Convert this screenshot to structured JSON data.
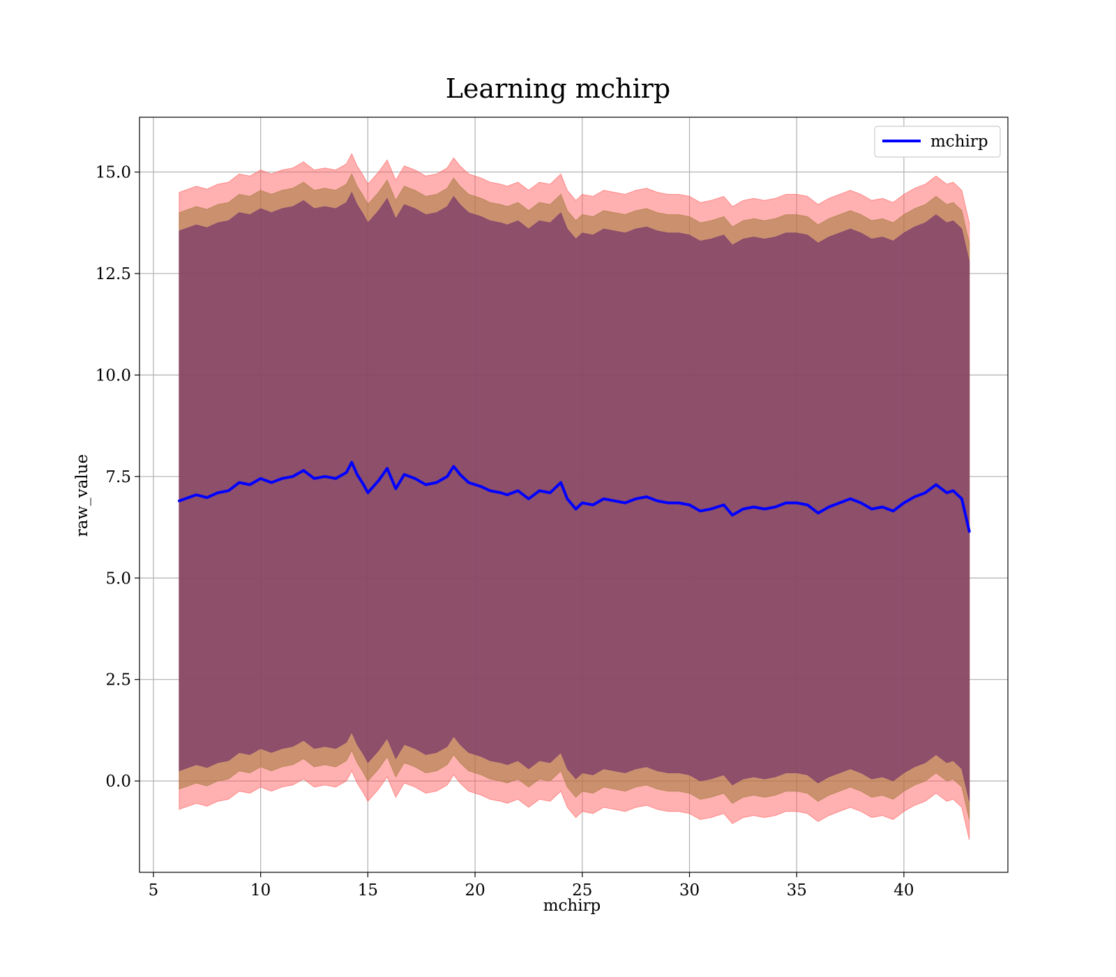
{
  "chart_data": {
    "type": "line",
    "title": "Learning mchirp",
    "xlabel": "mchirp",
    "ylabel": "raw_value",
    "xlim": [
      4.35,
      44.85
    ],
    "ylim": [
      -2.25,
      16.35
    ],
    "xticks": [
      5,
      10,
      15,
      20,
      25,
      30,
      35,
      40
    ],
    "xtick_labels": [
      "5",
      "10",
      "15",
      "20",
      "25",
      "30",
      "35",
      "40"
    ],
    "yticks": [
      0.0,
      2.5,
      5.0,
      7.5,
      10.0,
      12.5,
      15.0
    ],
    "ytick_labels": [
      "0.0",
      "2.5",
      "5.0",
      "7.5",
      "10.0",
      "12.5",
      "15.0"
    ],
    "grid": true,
    "legend_position": "top-right",
    "series": [
      {
        "name": "mchirp",
        "color": "#0000ff",
        "x": [
          6.2,
          7.0,
          7.5,
          8.0,
          8.5,
          9.0,
          9.5,
          10.0,
          10.5,
          11.0,
          11.5,
          12.0,
          12.5,
          13.0,
          13.5,
          14.0,
          14.25,
          14.5,
          14.8,
          15.0,
          15.5,
          15.9,
          16.3,
          16.7,
          17.2,
          17.7,
          18.2,
          18.7,
          19.0,
          19.3,
          19.7,
          20.3,
          20.7,
          21.2,
          21.5,
          22.0,
          22.5,
          23.0,
          23.5,
          24.0,
          24.3,
          24.7,
          25.0,
          25.5,
          26.0,
          26.5,
          27.0,
          27.5,
          28.0,
          28.5,
          29.0,
          29.5,
          30.0,
          30.5,
          31.0,
          31.6,
          32.0,
          32.5,
          33.0,
          33.5,
          34.0,
          34.5,
          35.0,
          35.5,
          36.0,
          36.5,
          37.0,
          37.5,
          38.0,
          38.5,
          39.0,
          39.5,
          40.0,
          40.5,
          41.0,
          41.5,
          42.0,
          42.3,
          42.7,
          43.05
        ],
        "values": [
          6.9,
          7.05,
          6.98,
          7.1,
          7.15,
          7.35,
          7.3,
          7.45,
          7.35,
          7.45,
          7.5,
          7.65,
          7.45,
          7.5,
          7.45,
          7.6,
          7.85,
          7.55,
          7.3,
          7.1,
          7.4,
          7.7,
          7.2,
          7.55,
          7.45,
          7.3,
          7.35,
          7.5,
          7.75,
          7.55,
          7.35,
          7.25,
          7.15,
          7.1,
          7.05,
          7.15,
          6.95,
          7.15,
          7.1,
          7.35,
          6.95,
          6.7,
          6.85,
          6.8,
          6.95,
          6.9,
          6.85,
          6.95,
          7.0,
          6.9,
          6.85,
          6.85,
          6.8,
          6.65,
          6.7,
          6.8,
          6.55,
          6.7,
          6.75,
          6.7,
          6.75,
          6.85,
          6.85,
          6.8,
          6.6,
          6.75,
          6.85,
          6.95,
          6.85,
          6.7,
          6.75,
          6.65,
          6.85,
          7.0,
          7.1,
          7.3,
          7.1,
          7.15,
          6.95,
          6.15
        ]
      }
    ],
    "bands": [
      {
        "offset_sigma": 3,
        "color": "#ff5a5a",
        "x": [
          6.2,
          43.05
        ],
        "upper_offset": 7.6,
        "lower_offset": -7.6
      },
      {
        "offset_sigma": 2,
        "color": "#a0783a",
        "x": [
          6.2,
          43.05
        ],
        "upper_offset": 7.1,
        "lower_offset": -7.1
      },
      {
        "offset_sigma": 1,
        "color": "#7a3a6a",
        "x": [
          6.2,
          43.05
        ],
        "upper_offset": 6.65,
        "lower_offset": -6.65
      }
    ]
  }
}
